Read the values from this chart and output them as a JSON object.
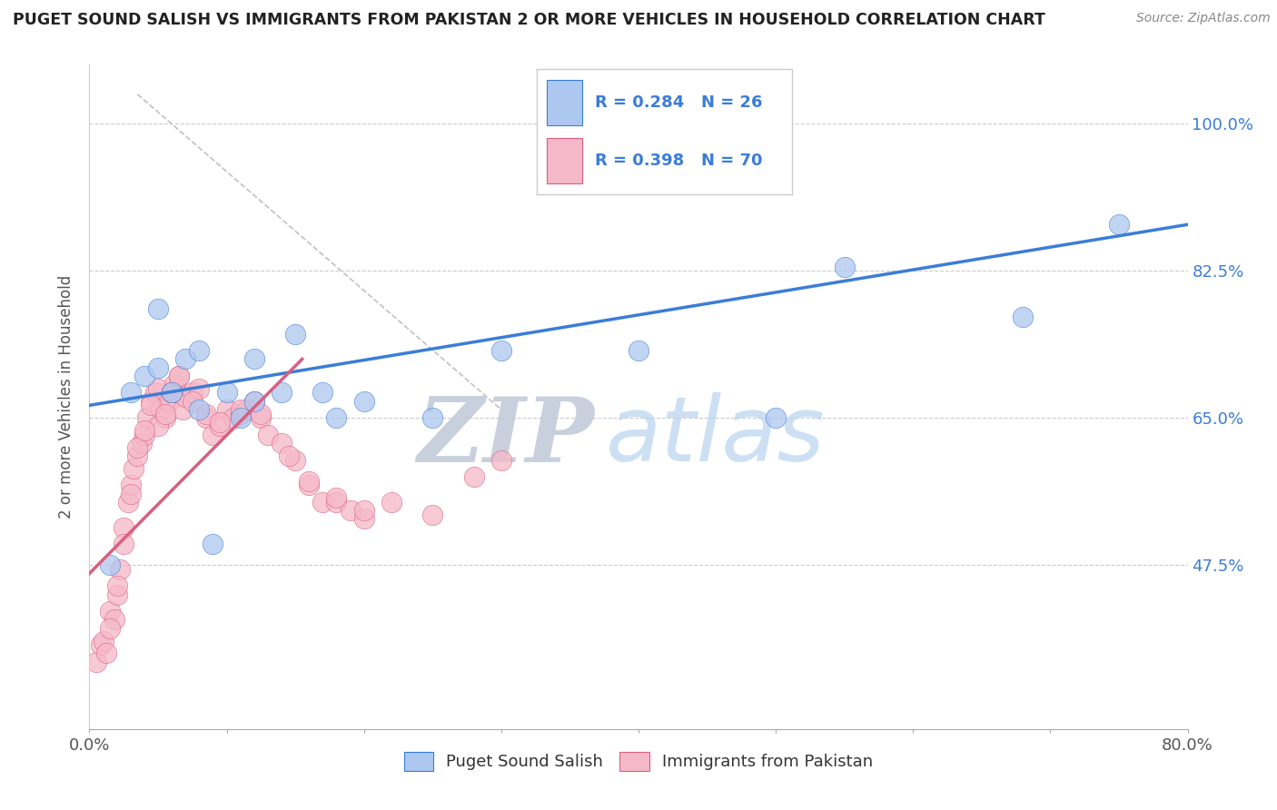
{
  "title": "PUGET SOUND SALISH VS IMMIGRANTS FROM PAKISTAN 2 OR MORE VEHICLES IN HOUSEHOLD CORRELATION CHART",
  "source": "Source: ZipAtlas.com",
  "ylabel": "2 or more Vehicles in Household",
  "xlim": [
    0.0,
    80.0
  ],
  "ylim": [
    28.0,
    107.0
  ],
  "xtick_vals": [
    0.0,
    10.0,
    20.0,
    30.0,
    40.0,
    50.0,
    60.0,
    70.0,
    80.0
  ],
  "xtick_labels": [
    "0.0%",
    "",
    "",
    "",
    "",
    "",
    "",
    "",
    "80.0%"
  ],
  "ytick_vals": [
    47.5,
    65.0,
    82.5,
    100.0
  ],
  "ytick_labels": [
    "47.5%",
    "65.0%",
    "82.5%",
    "100.0%"
  ],
  "blue_label": "Puget Sound Salish",
  "pink_label": "Immigrants from Pakistan",
  "blue_R": "R = 0.284",
  "blue_N": "N = 26",
  "pink_R": "R = 0.398",
  "pink_N": "N = 70",
  "blue_color": "#adc8f0",
  "pink_color": "#f5b8c8",
  "blue_line_color": "#3b7dd8",
  "pink_line_color": "#d95f7f",
  "blue_scatter_x": [
    1.5,
    3.0,
    4.0,
    5.0,
    6.0,
    7.0,
    8.0,
    9.0,
    10.0,
    11.0,
    12.0,
    14.0,
    15.0,
    17.0,
    18.0,
    20.0,
    25.0,
    30.0,
    40.0,
    50.0,
    55.0,
    68.0,
    75.0,
    5.0,
    8.0,
    12.0
  ],
  "blue_scatter_y": [
    47.5,
    68.0,
    70.0,
    71.0,
    68.0,
    72.0,
    66.0,
    50.0,
    68.0,
    65.0,
    72.0,
    68.0,
    75.0,
    68.0,
    65.0,
    67.0,
    65.0,
    73.0,
    73.0,
    65.0,
    83.0,
    77.0,
    88.0,
    78.0,
    73.0,
    67.0
  ],
  "pink_scatter_x": [
    0.5,
    0.8,
    1.0,
    1.2,
    1.5,
    1.8,
    2.0,
    2.2,
    2.5,
    2.8,
    3.0,
    3.2,
    3.5,
    3.8,
    4.0,
    4.2,
    4.5,
    4.8,
    5.0,
    5.2,
    5.5,
    5.8,
    6.0,
    6.2,
    6.5,
    6.8,
    7.0,
    7.5,
    8.0,
    8.5,
    9.0,
    9.5,
    10.0,
    10.5,
    11.0,
    11.5,
    12.0,
    12.5,
    13.0,
    14.0,
    15.0,
    16.0,
    17.0,
    18.0,
    19.0,
    20.0,
    22.0,
    25.0,
    28.0,
    30.0,
    5.0,
    3.5,
    4.5,
    6.0,
    7.5,
    2.0,
    1.5,
    2.5,
    3.0,
    4.0,
    5.5,
    6.5,
    8.5,
    9.5,
    11.0,
    12.5,
    14.5,
    16.0,
    18.0,
    20.0
  ],
  "pink_scatter_y": [
    36.0,
    38.0,
    38.5,
    37.0,
    42.0,
    41.0,
    44.0,
    47.0,
    52.0,
    55.0,
    57.0,
    59.0,
    60.5,
    62.0,
    63.0,
    65.0,
    67.0,
    68.0,
    68.5,
    66.0,
    65.0,
    67.0,
    68.0,
    69.0,
    70.0,
    66.0,
    67.5,
    68.0,
    68.5,
    65.0,
    63.0,
    64.0,
    66.0,
    65.0,
    65.5,
    66.0,
    67.0,
    65.0,
    63.0,
    62.0,
    60.0,
    57.0,
    55.0,
    55.0,
    54.0,
    53.0,
    55.0,
    53.5,
    58.0,
    60.0,
    64.0,
    61.5,
    66.5,
    68.0,
    67.0,
    45.0,
    40.0,
    50.0,
    56.0,
    63.5,
    65.5,
    70.0,
    65.5,
    64.5,
    66.0,
    65.5,
    60.5,
    57.5,
    55.5,
    54.0
  ],
  "blue_line_x0": 0.0,
  "blue_line_y0": 66.5,
  "blue_line_x1": 80.0,
  "blue_line_y1": 88.0,
  "pink_line_x0": 0.0,
  "pink_line_y0": 46.5,
  "pink_line_x1": 15.5,
  "pink_line_y1": 72.0,
  "ref_line_x0": 3.5,
  "ref_line_y0": 103.5,
  "ref_line_x1": 30.0,
  "ref_line_y1": 66.0
}
